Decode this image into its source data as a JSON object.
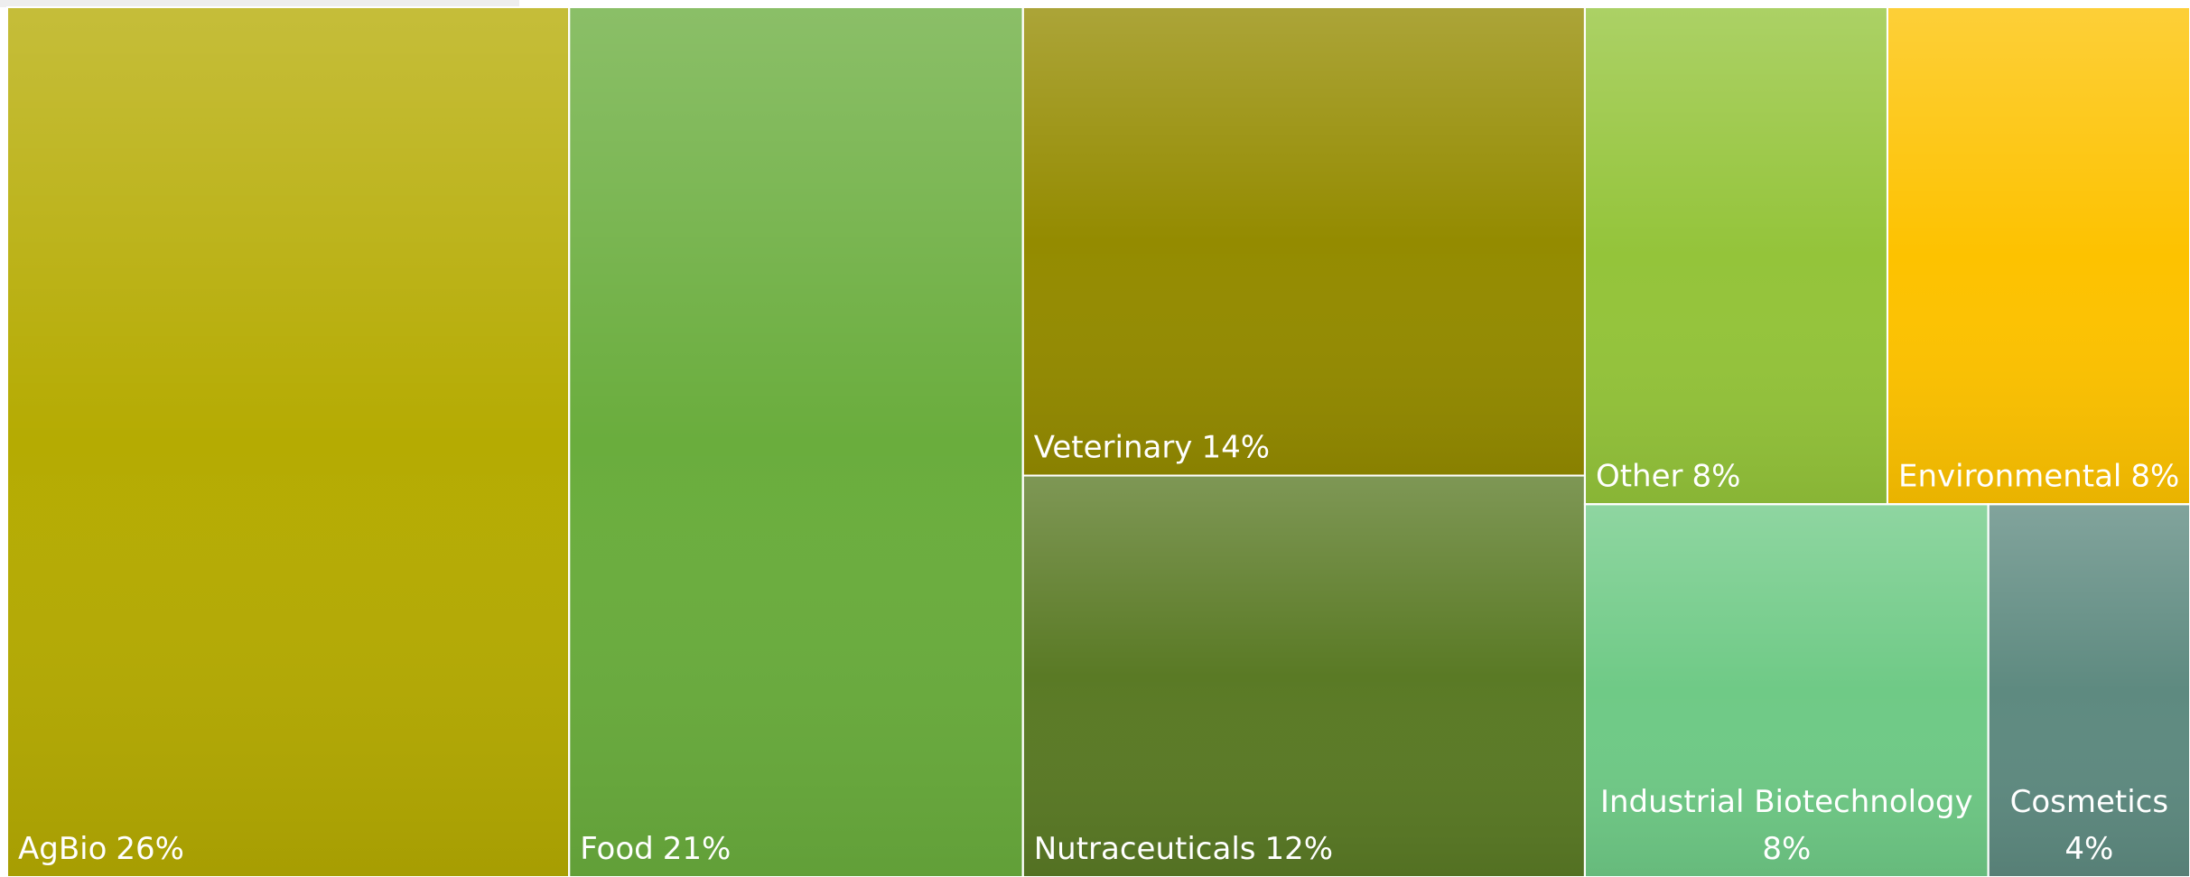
{
  "chart_data": {
    "type": "treemap",
    "categories": [
      "AgBio",
      "Food",
      "Veterinary",
      "Nutraceuticals",
      "Other",
      "Environmental",
      "Industrial Biotechnology",
      "Cosmetics"
    ],
    "values": [
      26,
      21,
      14,
      12,
      8,
      8,
      8,
      4
    ],
    "value_labels": [
      "26%",
      "21%",
      "14%",
      "12%",
      "8%",
      "8%",
      "8%",
      "4%"
    ],
    "colors": [
      "#b5ab02",
      "#6aad3d",
      "#948b00",
      "#5a7a25",
      "#94c43a",
      "#fdc200",
      "#6fca86",
      "#5e8a80"
    ]
  }
}
